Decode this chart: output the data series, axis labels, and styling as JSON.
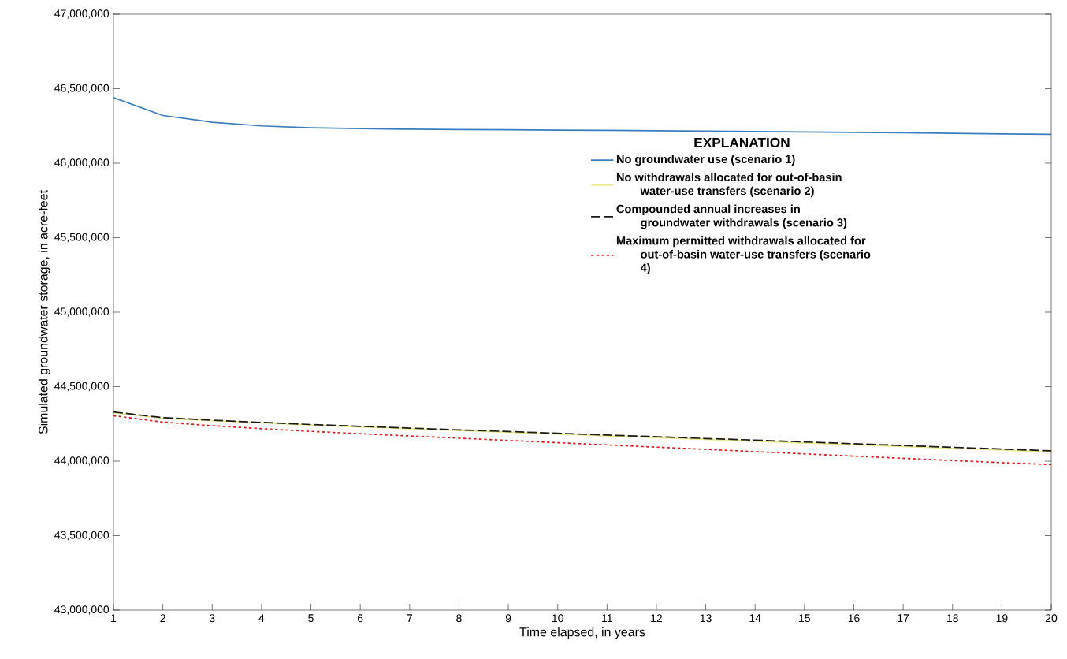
{
  "chart_data": {
    "type": "line",
    "xlabel": "Time elapsed, in years",
    "ylabel": "Simulated groundwater storage, in acre-feet",
    "legend_title": "EXPLANATION",
    "legend": "right",
    "x": [
      1,
      2,
      3,
      4,
      5,
      6,
      7,
      8,
      9,
      10,
      11,
      12,
      13,
      14,
      15,
      16,
      17,
      18,
      19,
      20
    ],
    "series": [
      {
        "name": "No groundwater use (scenario 1)",
        "color": "#3a7ebf",
        "line_style": "solid",
        "values": [
          46440000,
          46320000,
          46275000,
          46250000,
          46238000,
          46232000,
          46228000,
          46226000,
          46224000,
          46222000,
          46220000,
          46218000,
          46215000,
          46212000,
          46210000,
          46207000,
          46204000,
          46200000,
          46197000,
          46194000
        ]
      },
      {
        "name": "No withdrawals allocated for out-of-basin water-use transfers (scenario 2)",
        "color": "#e8e88a",
        "line_style": "solid",
        "values": [
          44325000,
          44288000,
          44272000,
          44257000,
          44243000,
          44230000,
          44218000,
          44206000,
          44194000,
          44182000,
          44170000,
          44158000,
          44146000,
          44134000,
          44122000,
          44110000,
          44098000,
          44086000,
          44074000,
          44062000
        ]
      },
      {
        "name": "Compounded annual increases in groundwater withdrawals (scenario 3)",
        "color": "#1a1a1a",
        "line_style": "dashed",
        "values": [
          44330000,
          44292000,
          44275000,
          44260000,
          44246000,
          44234000,
          44222000,
          44210000,
          44199000,
          44187000,
          44175000,
          44164000,
          44152000,
          44141000,
          44129000,
          44117000,
          44105000,
          44093000,
          44081000,
          44069000
        ]
      },
      {
        "name": "Maximum permitted withdrawals allocated for out-of-basin water-use transfers (scenario 4)",
        "color": "#e31a1c",
        "line_style": "dotted",
        "values": [
          44305000,
          44262000,
          44238000,
          44218000,
          44200000,
          44184000,
          44169000,
          44154000,
          44139000,
          44124000,
          44109000,
          44094000,
          44079000,
          44064000,
          44049000,
          44034000,
          44019000,
          44004000,
          43990000,
          43977000
        ]
      }
    ],
    "xlim": [
      1,
      20
    ],
    "xticks": [
      1,
      2,
      3,
      4,
      5,
      6,
      7,
      8,
      9,
      10,
      11,
      12,
      13,
      14,
      15,
      16,
      17,
      18,
      19,
      20
    ],
    "ylim": [
      43000000,
      47000000
    ],
    "yticks": [
      {
        "value": 43000000,
        "label": "43,000,000"
      },
      {
        "value": 43500000,
        "label": "43,500,000"
      },
      {
        "value": 44000000,
        "label": "44,000,000"
      },
      {
        "value": 44500000,
        "label": "44,500,000"
      },
      {
        "value": 45000000,
        "label": "45,000,000"
      },
      {
        "value": 45500000,
        "label": "45,500,000"
      },
      {
        "value": 46000000,
        "label": "46,000,000"
      },
      {
        "value": 46500000,
        "label": "46,500,000"
      },
      {
        "value": 47000000,
        "label": "47,000,000"
      }
    ]
  }
}
